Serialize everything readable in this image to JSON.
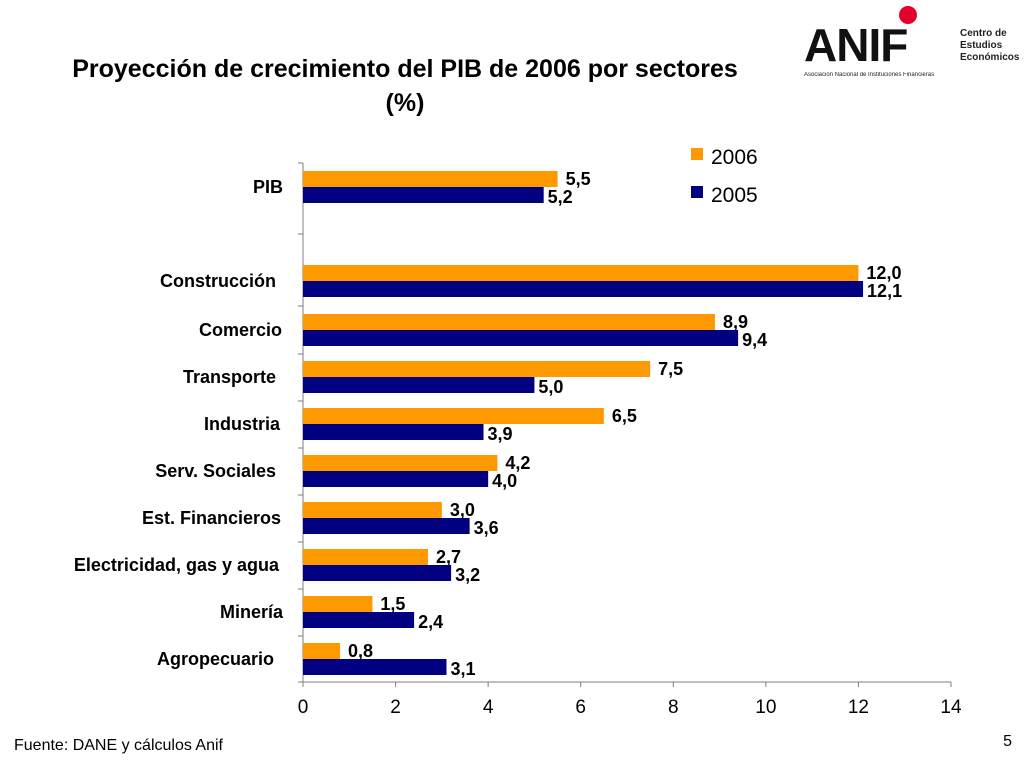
{
  "title": {
    "line1": "Proyección de crecimiento del PIB de 2006 por sectores",
    "line2": "(%)"
  },
  "logo": {
    "word": "ANIF",
    "subtitle": "Asociación Nacional de Instituciones Financieras",
    "side": [
      "Centro de",
      "Estudios",
      "Económicos"
    ],
    "dot_color": "#e4002b"
  },
  "source": "Fuente: DANE y cálculos Anif",
  "page_number": "5",
  "colors": {
    "series_2006": "#ff9900",
    "series_2005": "#000080",
    "axis": "#7f7f7f"
  },
  "chart_data": {
    "type": "bar",
    "orientation": "horizontal",
    "categories": [
      "PIB",
      "Construcción",
      "Comercio",
      "Transporte",
      "Industria",
      "Serv. Sociales",
      "Est. Financieros",
      "Electricidad, gas y agua",
      "Minería",
      "Agropecuario"
    ],
    "series": [
      {
        "name": "2006",
        "values": [
          5.5,
          12.0,
          8.9,
          7.5,
          6.5,
          4.2,
          3.0,
          2.7,
          1.5,
          0.8
        ],
        "labels": [
          "5,5",
          "12,0",
          "8,9",
          "7,5",
          "6,5",
          "4,2",
          "3,0",
          "2,7",
          "1,5",
          "0,8"
        ]
      },
      {
        "name": "2005",
        "values": [
          5.2,
          12.1,
          9.4,
          5.0,
          3.9,
          4.0,
          3.6,
          3.2,
          2.4,
          3.1
        ],
        "labels": [
          "5,2",
          "12,1",
          "9,4",
          "5,0",
          "3,9",
          "4,0",
          "3,6",
          "3,2",
          "2,4",
          "3,1"
        ]
      }
    ],
    "xlim": [
      0,
      14
    ],
    "xticks": [
      "0",
      "2",
      "4",
      "6",
      "8",
      "10",
      "12",
      "14"
    ],
    "grid": false,
    "legend_position": "top-right"
  }
}
